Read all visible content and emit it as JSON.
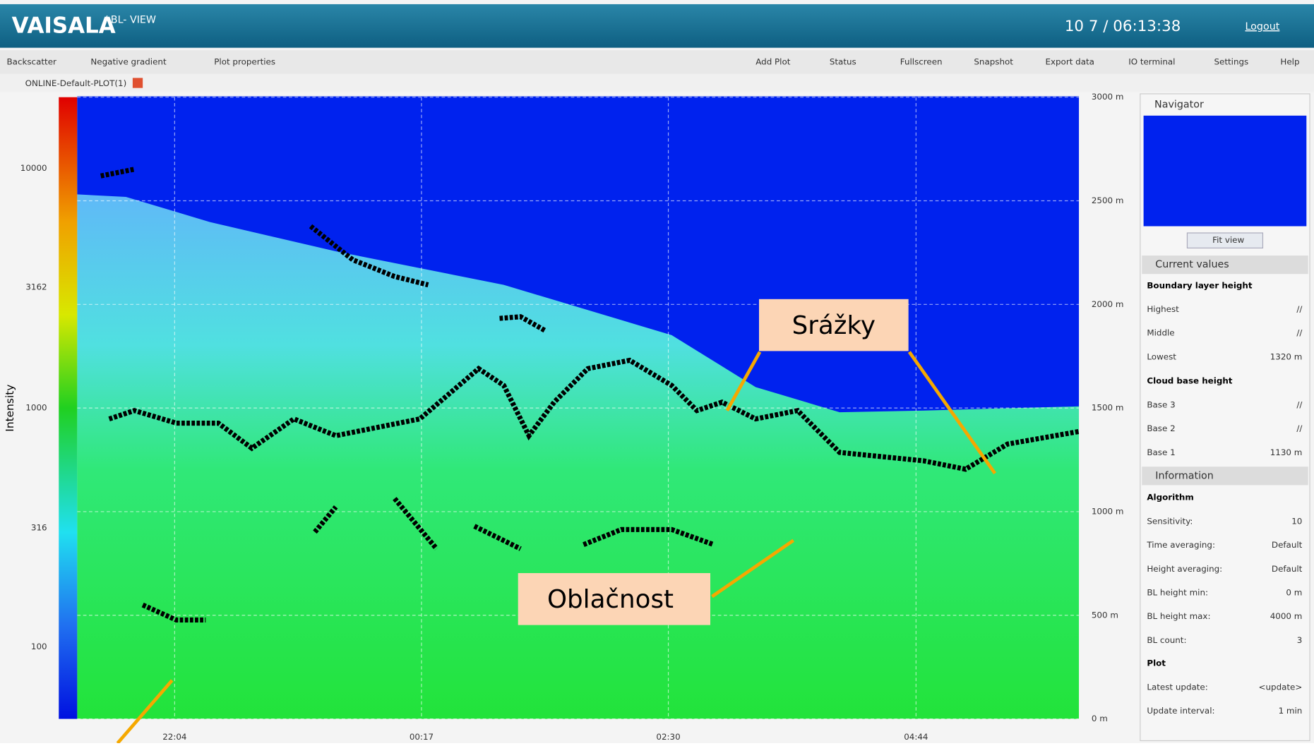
{
  "header": {
    "logo": "VAISALA",
    "product": "/ BL- VIEW",
    "clock": "10 7 / 06:13:38",
    "logout": "Logout"
  },
  "toolbar": {
    "tabs": [
      "Backscatter",
      "Negative gradient",
      "Plot properties"
    ],
    "buttons": [
      "Add Plot",
      "Status",
      "Fullscreen",
      "Snapshot",
      "Export data",
      "IO terminal",
      "Settings",
      "Help"
    ]
  },
  "plot_tab": "ONLINE-Default-PLOT(1)",
  "plot": {
    "y_label": "Intensity",
    "intensity_ticks": [
      "10000",
      "3162",
      "1000",
      "316",
      "100"
    ],
    "height_ticks": [
      "3000 m",
      "2500 m",
      "2000 m",
      "1500 m",
      "1000 m",
      "500 m",
      "0 m"
    ],
    "time_ticks": [
      "22:04",
      "00:17",
      "02:30",
      "04:44"
    ]
  },
  "annotations": [
    "Srážky",
    "Oblačnost"
  ],
  "panel": {
    "navigator": "Navigator",
    "fit_view": "Fit view",
    "current_values": "Current values",
    "boundary_layer": {
      "title": "Boundary layer height",
      "rows": [
        [
          "Highest",
          "//"
        ],
        [
          "Middle",
          "//"
        ],
        [
          "Lowest",
          "1320 m"
        ]
      ]
    },
    "cloud_base": {
      "title": "Cloud base height",
      "rows": [
        [
          "Base 3",
          "//"
        ],
        [
          "Base 2",
          "//"
        ],
        [
          "Base 1",
          "1130 m"
        ]
      ]
    },
    "information": "Information",
    "algorithm": {
      "title": "Algorithm",
      "rows": [
        [
          "Sensitivity:",
          "10"
        ],
        [
          "Time averaging:",
          "Default"
        ],
        [
          "Height averaging:",
          "Default"
        ],
        [
          "BL height min:",
          "0 m"
        ],
        [
          "BL height max:",
          "4000 m"
        ],
        [
          "BL count:",
          "3"
        ]
      ]
    },
    "plot_info": {
      "title": "Plot",
      "rows": [
        [
          "Latest update:",
          "<update>"
        ],
        [
          "Update interval:",
          "1 min"
        ]
      ]
    }
  }
}
